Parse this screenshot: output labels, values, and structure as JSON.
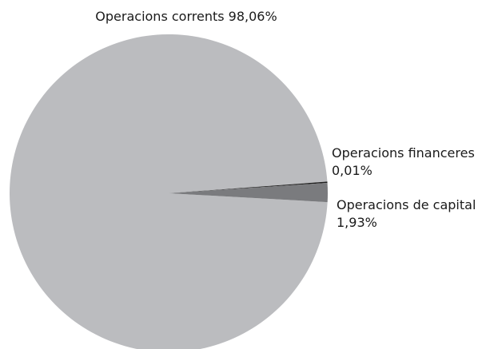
{
  "chart_data": {
    "type": "pie",
    "slices": [
      {
        "label": "Operacions corrents",
        "percent_text": "98,06%",
        "value": 98.06,
        "color": "#bbbcbf"
      },
      {
        "label": "Operacions financeres",
        "percent_text": "0,01%",
        "value": 0.01,
        "color": "#1f1f1f"
      },
      {
        "label": "Operacions de capital",
        "percent_text": "1,93%",
        "value": 1.93,
        "color": "#7a7b7e"
      }
    ],
    "legend": "none"
  }
}
